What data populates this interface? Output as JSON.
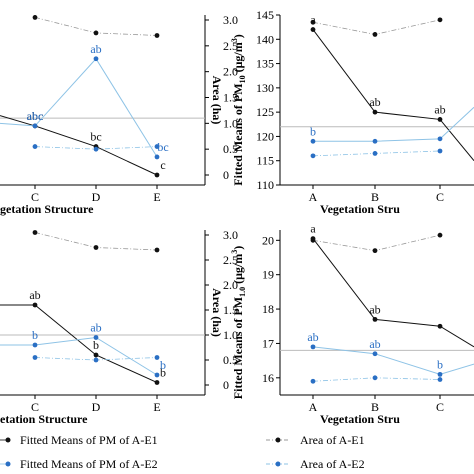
{
  "colors": {
    "black": "#111111",
    "blue": "#2a6fc4",
    "light_blue": "#8ec3e6",
    "grey_dash": "#999999"
  },
  "chart_data": [
    {
      "panel": "top-left",
      "type": "line",
      "categories": [
        "C",
        "D",
        "E"
      ],
      "xlabel": "getation Structure",
      "ylabel_right": "Area (ha)",
      "y2lim": [
        0,
        3.0
      ],
      "y2ticks": [
        "0",
        "0.5",
        "1.0",
        "1.5",
        "2.0",
        "2.5",
        "3.0"
      ],
      "y1lim": [
        0,
        3.0
      ],
      "series": [
        {
          "axis": "left",
          "color": "black",
          "values": [
            0.95,
            0.55,
            0.0
          ],
          "labels": [
            "abc",
            "bc",
            "c"
          ],
          "start": 1.15
        },
        {
          "axis": "left",
          "color": "blue",
          "values": [
            0.95,
            2.25,
            0.35
          ],
          "labels": [
            "abc",
            "ab",
            "bc"
          ],
          "start": 1.0
        },
        {
          "axis": "right",
          "color": "black",
          "style": "dash",
          "values": [
            3.05,
            2.75,
            2.7
          ]
        },
        {
          "axis": "right",
          "color": "blue",
          "style": "dash",
          "values": [
            0.55,
            0.5,
            0.55
          ]
        }
      ],
      "hline": 1.1
    },
    {
      "panel": "top-right",
      "type": "line",
      "categories": [
        "A",
        "B",
        "C"
      ],
      "xlabel": "Vegetation Stru",
      "ylabel": "Fitted Means of PM10 (μg/m3)",
      "ylabel_parts": [
        "Fitted Means of PM",
        "10",
        " (μg/m",
        "3",
        ")"
      ],
      "ylim": [
        110,
        145
      ],
      "yticks": [
        "110",
        "115",
        "120",
        "125",
        "130",
        "135",
        "140",
        "145"
      ],
      "series": [
        {
          "color": "black",
          "values": [
            142,
            125,
            123.5
          ],
          "labels": [
            "a",
            "ab",
            "ab"
          ],
          "end": 115
        },
        {
          "color": "blue",
          "values": [
            119,
            119,
            119.5
          ],
          "labels": [
            "b",
            "",
            ""
          ],
          "end": 126
        },
        {
          "color": "black",
          "style": "dash",
          "values": [
            143.5,
            141,
            144
          ]
        },
        {
          "color": "blue",
          "style": "dash",
          "values": [
            116,
            116.5,
            117
          ]
        }
      ],
      "hline": 122
    },
    {
      "panel": "bottom-left",
      "type": "line",
      "categories": [
        "C",
        "D",
        "E"
      ],
      "xlabel": "etation Structure",
      "ylabel_right": "Area (ha)",
      "y2lim": [
        0,
        3.0
      ],
      "y2ticks": [
        "0",
        "0.5",
        "1.0",
        "1.5",
        "2.0",
        "2.5",
        "3.0"
      ],
      "series": [
        {
          "axis": "left",
          "color": "black",
          "values": [
            1.6,
            0.6,
            0.05
          ],
          "labels": [
            "ab",
            "b",
            "b"
          ],
          "start": 1.6
        },
        {
          "axis": "left",
          "color": "blue",
          "values": [
            0.8,
            0.95,
            0.2
          ],
          "labels": [
            "b",
            "ab",
            "b"
          ],
          "start": 0.8
        },
        {
          "axis": "right",
          "color": "black",
          "style": "dash",
          "values": [
            3.05,
            2.75,
            2.7
          ]
        },
        {
          "axis": "right",
          "color": "blue",
          "style": "dash",
          "values": [
            0.55,
            0.5,
            0.55
          ]
        }
      ],
      "hline": 1.0
    },
    {
      "panel": "bottom-right",
      "type": "line",
      "categories": [
        "A",
        "B",
        "C"
      ],
      "xlabel": "Vegetation Stru",
      "ylabel": "Fitted Means of PM1.0 (μg/m3)",
      "ylabel_parts": [
        "Fitted Means of PM",
        "1.0",
        " (μg/m",
        "3",
        ")"
      ],
      "ylim": [
        15.5,
        20.3
      ],
      "yticks": [
        "16",
        "17",
        "18",
        "19",
        "20"
      ],
      "series": [
        {
          "color": "black",
          "values": [
            20.05,
            17.7,
            17.5
          ],
          "labels": [
            "a",
            "ab",
            ""
          ],
          "end": 16.9
        },
        {
          "color": "blue",
          "values": [
            16.9,
            16.7,
            16.1
          ],
          "labels": [
            "ab",
            "ab",
            "b"
          ],
          "end": 16.4
        },
        {
          "color": "black",
          "style": "dash",
          "values": [
            20.0,
            19.7,
            20.15
          ]
        },
        {
          "color": "blue",
          "style": "dash",
          "values": [
            15.9,
            16.0,
            15.95
          ]
        }
      ],
      "hline": 16.8
    }
  ],
  "legend": {
    "items": [
      "Fitted Means of PM of A-E1",
      "Area of A-E1",
      "Fitted Means of PM of A-E2",
      "Area of A-E2"
    ]
  }
}
